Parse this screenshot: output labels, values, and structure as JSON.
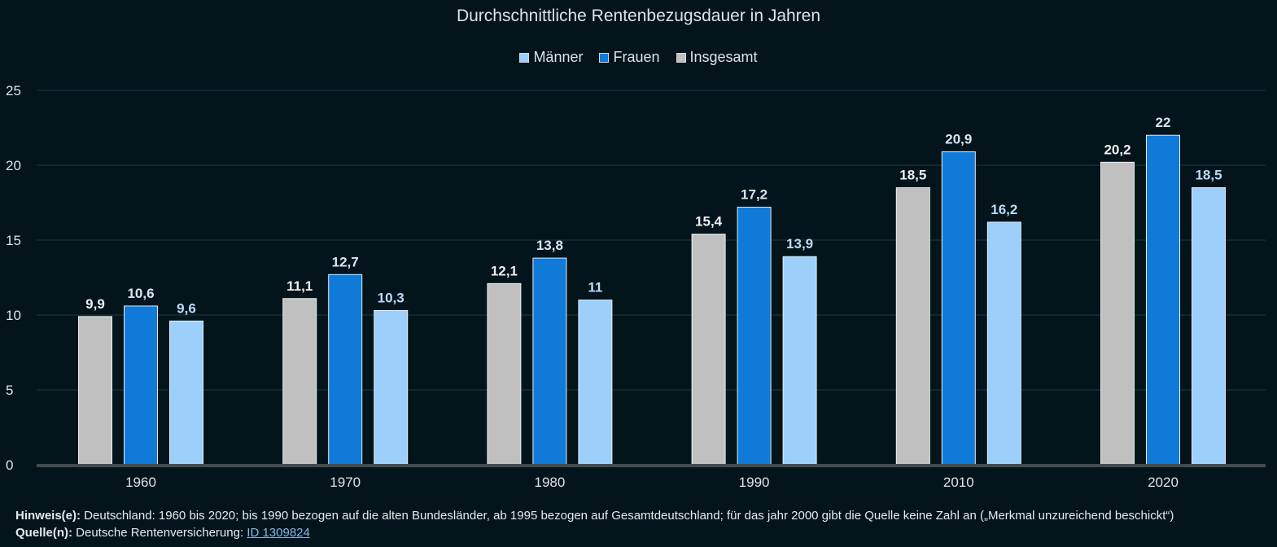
{
  "chart_data": {
    "type": "bar",
    "title": "Durchschnittliche Rentenbezugsdauer in Jahren",
    "categories": [
      "1960",
      "1970",
      "1980",
      "1990",
      "2010",
      "2020"
    ],
    "series": [
      {
        "name": "Insgesamt",
        "color": "#c0c0c0",
        "label_color": "#eeeeee",
        "values": [
          9.9,
          11.1,
          12.1,
          15.4,
          18.5,
          20.2
        ],
        "labels": [
          "9,9",
          "11,1",
          "12,1",
          "15,4",
          "18,5",
          "20,2"
        ]
      },
      {
        "name": "Frauen",
        "color": "#0f7ad8",
        "label_color": "#d6e6f5",
        "values": [
          10.6,
          12.7,
          13.8,
          17.2,
          20.9,
          22
        ],
        "labels": [
          "10,6",
          "12,7",
          "13,8",
          "17,2",
          "20,9",
          "22"
        ]
      },
      {
        "name": "Männer",
        "color": "#9ccffa",
        "label_color": "#b9dcfb",
        "values": [
          9.6,
          10.3,
          11,
          13.9,
          16.2,
          18.5
        ],
        "labels": [
          "9,6",
          "10,3",
          "11",
          "13,9",
          "16,2",
          "18,5"
        ]
      }
    ],
    "legend_order": [
      "Männer",
      "Frauen",
      "Insgesamt"
    ],
    "legend_placement": "top-center",
    "ylim": [
      0,
      25
    ],
    "yticks": [
      "0",
      "5",
      "10",
      "15",
      "20",
      "25"
    ],
    "grid": true,
    "xlabel": "",
    "ylabel": ""
  },
  "footer": {
    "note_label": "Hinweis(e):",
    "note_text": " Deutschland: 1960 bis 2020; bis 1990 bezogen auf die alten Bundesländer, ab 1995 bezogen auf Gesamtdeutschland; für das jahr 2000 gibt die Quelle keine Zahl an („Merkmal unzureichend beschickt“)",
    "source_label": "Quelle(n):",
    "source_text": " Deutsche Rentenversicherung: ",
    "source_link": "ID 1309824"
  }
}
